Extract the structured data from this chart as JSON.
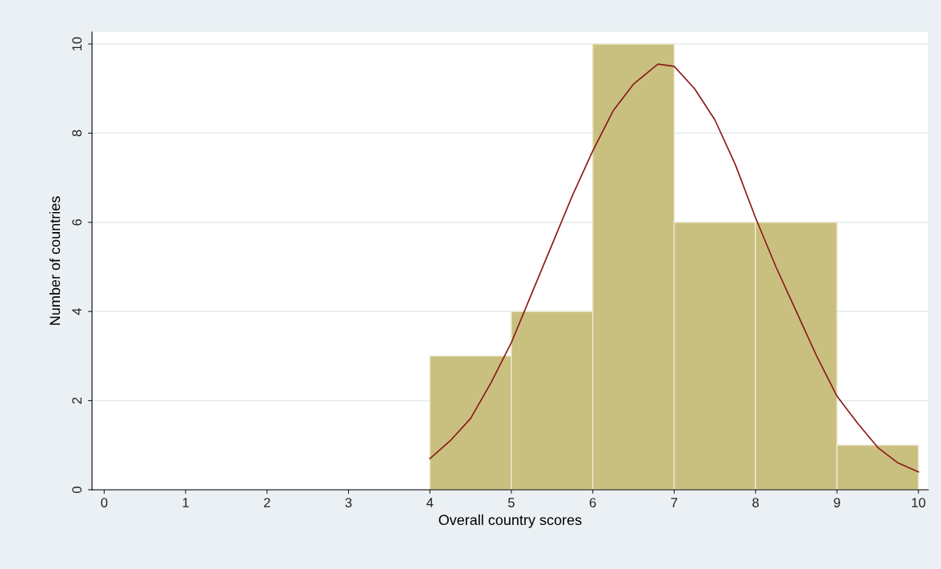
{
  "chart_data": {
    "type": "histogram",
    "xlabel": "Overall country scores",
    "ylabel": "Number of countries",
    "bins": [
      4,
      5,
      6,
      7,
      8,
      9,
      10
    ],
    "values": [
      3,
      4,
      10,
      6,
      6,
      1
    ],
    "color": "#c9c07f",
    "series": [
      {
        "type": "line",
        "color": "#8b1a1a",
        "x": [
          4,
          4.25,
          4.5,
          4.75,
          5,
          5.25,
          5.5,
          5.75,
          6,
          6.25,
          6.5,
          6.8,
          7,
          7.25,
          7.5,
          7.75,
          8,
          8.25,
          8.5,
          8.75,
          9,
          9.25,
          9.5,
          9.75,
          10
        ],
        "values": [
          0.7,
          1.1,
          1.6,
          2.4,
          3.3,
          4.4,
          5.5,
          6.6,
          7.6,
          8.5,
          9.1,
          9.55,
          9.5,
          9.0,
          8.3,
          7.3,
          6.1,
          5.0,
          4.0,
          3.0,
          2.1,
          1.5,
          0.95,
          0.6,
          0.4
        ]
      }
    ],
    "xlim": [
      -0.15,
      10.12
    ],
    "ylim": [
      0,
      10.27
    ],
    "xticks": [
      0,
      1,
      2,
      3,
      4,
      5,
      6,
      7,
      8,
      9,
      10
    ],
    "yticks": [
      0,
      2,
      4,
      6,
      8,
      10
    ],
    "grid": "y"
  }
}
